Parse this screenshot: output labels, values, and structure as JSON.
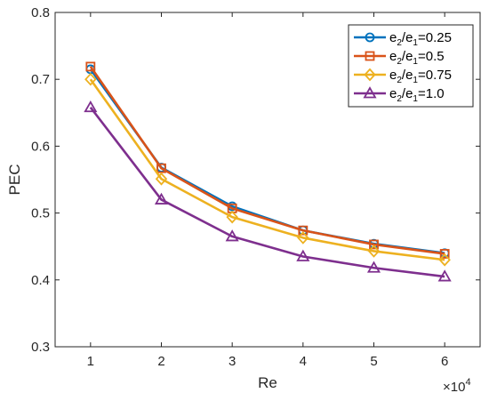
{
  "chart_data": {
    "type": "line",
    "xlabel": "Re",
    "ylabel": "PEC",
    "x_multiplier": "×10",
    "x_multiplier_exp": "4",
    "x": [
      1,
      2,
      3,
      4,
      5,
      6
    ],
    "xlim": [
      0.5,
      6.5
    ],
    "ylim": [
      0.3,
      0.8
    ],
    "x_ticks": [
      1,
      2,
      3,
      4,
      5,
      6
    ],
    "y_ticks": [
      0.3,
      0.4,
      0.5,
      0.6,
      0.7,
      0.8
    ],
    "y_tick_labels": [
      "0.3",
      "0.4",
      "0.5",
      "0.6",
      "0.7",
      "0.8"
    ],
    "grid": false,
    "legend_position": "top-right",
    "series": [
      {
        "name": "e2/e1=0.25",
        "name_base": "e",
        "name_sub1": "2",
        "name_mid": "/e",
        "name_sub2": "1",
        "name_tail": "=0.25",
        "color": "#0072BD",
        "marker": "circle",
        "values": [
          0.715,
          0.568,
          0.51,
          0.474,
          0.454,
          0.44
        ]
      },
      {
        "name": "e2/e1=0.5",
        "name_base": "e",
        "name_sub1": "2",
        "name_mid": "/e",
        "name_sub2": "1",
        "name_tail": "=0.5",
        "color": "#D95319",
        "marker": "square",
        "values": [
          0.719,
          0.567,
          0.507,
          0.474,
          0.453,
          0.439
        ]
      },
      {
        "name": "e2/e1=0.75",
        "name_base": "e",
        "name_sub1": "2",
        "name_mid": "/e",
        "name_sub2": "1",
        "name_tail": "=0.75",
        "color": "#EDB120",
        "marker": "diamond",
        "values": [
          0.7,
          0.551,
          0.494,
          0.463,
          0.443,
          0.43
        ]
      },
      {
        "name": "e2/e1=1.0",
        "name_base": "e",
        "name_sub1": "2",
        "name_mid": "/e",
        "name_sub2": "1",
        "name_tail": "=1.0",
        "color": "#7E2F8E",
        "marker": "triangle",
        "values": [
          0.658,
          0.52,
          0.465,
          0.435,
          0.418,
          0.405
        ]
      }
    ]
  }
}
